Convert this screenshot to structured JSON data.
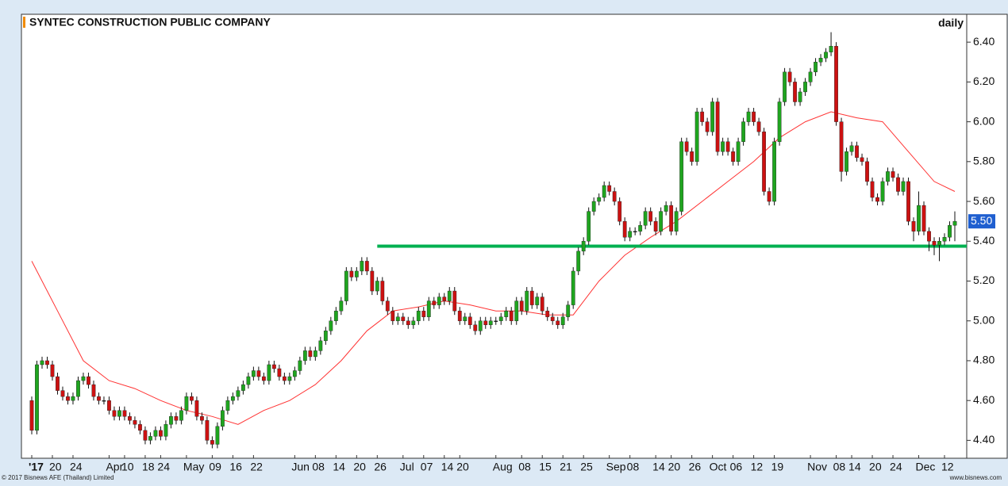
{
  "chart_data": {
    "type": "candlestick",
    "title": "SYNTEC CONSTRUCTION PUBLIC COMPANY",
    "period": "daily",
    "footer_left": "© 2017 Bisnews AFE (Thailand) Limited",
    "footer_right": "www.bisnews.com",
    "last_value_label": "5.50",
    "up_color": "#1fa51f",
    "down_color": "#cc1111",
    "ylim": [
      4.31,
      6.54
    ],
    "yticks": [
      {
        "value": 4.4,
        "label": "4.40"
      },
      {
        "value": 4.6,
        "label": "4.60"
      },
      {
        "value": 4.8,
        "label": "4.80"
      },
      {
        "value": 5.0,
        "label": "5.00"
      },
      {
        "value": 5.2,
        "label": "5.20"
      },
      {
        "value": 5.4,
        "label": "5.40"
      },
      {
        "value": 5.6,
        "label": "5.60"
      },
      {
        "value": 5.8,
        "label": "5.80"
      },
      {
        "value": 6.0,
        "label": "6.00"
      },
      {
        "value": 6.2,
        "label": "6.20"
      },
      {
        "value": 6.4,
        "label": "6.40"
      }
    ],
    "categories": [
      "'17",
      null,
      null,
      null,
      "20",
      null,
      null,
      null,
      "24",
      null,
      null,
      null,
      null,
      null,
      null,
      "Apr",
      null,
      null,
      "10",
      null,
      null,
      null,
      "18",
      null,
      null,
      "24",
      null,
      null,
      null,
      null,
      "May",
      null,
      null,
      null,
      null,
      "09",
      null,
      null,
      null,
      "16",
      null,
      null,
      null,
      "22",
      null,
      null,
      null,
      null,
      null,
      null,
      null,
      "Jun",
      null,
      null,
      null,
      "08",
      null,
      null,
      null,
      "14",
      null,
      null,
      null,
      "20",
      null,
      null,
      null,
      "26",
      null,
      null,
      null,
      null,
      "Jul",
      null,
      null,
      null,
      "07",
      null,
      null,
      null,
      "14",
      null,
      null,
      "20",
      null,
      null,
      null,
      null,
      null,
      null,
      "Aug",
      null,
      null,
      null,
      null,
      "08",
      null,
      null,
      null,
      "15",
      null,
      null,
      null,
      "21",
      null,
      null,
      null,
      "25",
      null,
      null,
      null,
      null,
      "Sep",
      null,
      null,
      null,
      "08",
      null,
      null,
      null,
      null,
      "14",
      null,
      null,
      "20",
      null,
      null,
      null,
      "26",
      null,
      null,
      null,
      "Oct",
      null,
      null,
      null,
      "06",
      null,
      null,
      null,
      "12",
      null,
      null,
      null,
      "19",
      null,
      null,
      null,
      null,
      null,
      null,
      "Nov",
      null,
      null,
      null,
      null,
      "08",
      null,
      null,
      "14",
      null,
      null,
      null,
      "20",
      null,
      null,
      null,
      "24",
      null,
      null,
      null,
      null,
      "Dec",
      null,
      null,
      null,
      null,
      "12",
      null,
      null
    ],
    "open": [
      4.6,
      4.45,
      4.78,
      4.8,
      4.78,
      4.72,
      4.65,
      4.62,
      4.6,
      4.62,
      4.7,
      4.72,
      4.68,
      4.62,
      4.6,
      4.6,
      4.55,
      4.52,
      4.55,
      4.52,
      4.5,
      4.48,
      4.45,
      4.4,
      4.42,
      4.45,
      4.42,
      4.48,
      4.52,
      4.5,
      4.55,
      4.62,
      4.6,
      4.52,
      4.5,
      4.4,
      4.38,
      4.47,
      4.55,
      4.6,
      4.62,
      4.65,
      4.68,
      4.72,
      4.75,
      4.72,
      4.7,
      4.78,
      4.76,
      4.72,
      4.7,
      4.72,
      4.75,
      4.8,
      4.85,
      4.82,
      4.85,
      4.9,
      4.95,
      5.0,
      5.05,
      5.1,
      5.25,
      5.22,
      5.25,
      5.3,
      5.25,
      5.15,
      5.2,
      5.1,
      5.05,
      5.0,
      5.02,
      5.0,
      4.98,
      5.0,
      5.05,
      5.02,
      5.1,
      5.08,
      5.12,
      5.1,
      5.15,
      5.05,
      5.0,
      5.02,
      4.98,
      4.95,
      5.0,
      4.98,
      5.0,
      5.0,
      5.02,
      5.05,
      5.0,
      5.1,
      5.05,
      5.15,
      5.08,
      5.12,
      5.05,
      5.02,
      5.0,
      4.98,
      5.02,
      5.08,
      5.25,
      5.35,
      5.4,
      5.55,
      5.6,
      5.62,
      5.68,
      5.65,
      5.6,
      5.5,
      5.42,
      5.45,
      5.45,
      5.48,
      5.55,
      5.5,
      5.45,
      5.55,
      5.58,
      5.45,
      5.55,
      5.9,
      5.85,
      5.8,
      6.05,
      6.0,
      5.95,
      6.1,
      5.85,
      5.9,
      5.85,
      5.8,
      5.9,
      6.0,
      6.05,
      6.0,
      5.95,
      5.65,
      5.6,
      5.9,
      6.1,
      6.25,
      6.2,
      6.1,
      6.15,
      6.2,
      6.25,
      6.3,
      6.32,
      6.35,
      6.38,
      6.0,
      5.75,
      5.85,
      5.88,
      5.82,
      5.8,
      5.7,
      5.62,
      5.6,
      5.7,
      5.75,
      5.72,
      5.65,
      5.7,
      5.5,
      5.45,
      5.58,
      5.45,
      5.4,
      5.38,
      5.4,
      5.42,
      5.48
    ],
    "high": [
      4.62,
      4.8,
      4.82,
      4.82,
      4.8,
      4.74,
      4.67,
      4.64,
      4.64,
      4.72,
      4.74,
      4.74,
      4.7,
      4.64,
      4.62,
      4.62,
      4.57,
      4.57,
      4.57,
      4.54,
      4.52,
      4.5,
      4.47,
      4.44,
      4.47,
      4.47,
      4.5,
      4.54,
      4.54,
      4.57,
      4.64,
      4.64,
      4.62,
      4.54,
      4.52,
      4.42,
      4.49,
      4.57,
      4.62,
      4.64,
      4.67,
      4.7,
      4.74,
      4.77,
      4.77,
      4.74,
      4.8,
      4.8,
      4.78,
      4.74,
      4.74,
      4.77,
      4.82,
      4.87,
      4.87,
      4.87,
      4.92,
      4.97,
      5.02,
      5.07,
      5.12,
      5.27,
      5.27,
      5.27,
      5.32,
      5.32,
      5.27,
      5.22,
      5.22,
      5.12,
      5.07,
      5.04,
      5.04,
      5.02,
      5.02,
      5.07,
      5.07,
      5.12,
      5.12,
      5.14,
      5.14,
      5.17,
      5.17,
      5.07,
      5.04,
      5.04,
      5.0,
      5.02,
      5.02,
      5.02,
      5.02,
      5.04,
      5.07,
      5.07,
      5.12,
      5.12,
      5.17,
      5.17,
      5.14,
      5.14,
      5.07,
      5.04,
      5.02,
      5.04,
      5.1,
      5.27,
      5.37,
      5.42,
      5.57,
      5.62,
      5.64,
      5.7,
      5.7,
      5.67,
      5.62,
      5.52,
      5.47,
      5.47,
      5.5,
      5.57,
      5.57,
      5.52,
      5.57,
      5.6,
      5.6,
      5.57,
      5.92,
      5.92,
      5.87,
      6.07,
      6.07,
      6.02,
      6.12,
      6.12,
      5.92,
      5.92,
      5.87,
      5.92,
      6.02,
      6.07,
      6.07,
      6.02,
      5.97,
      5.67,
      5.92,
      6.12,
      6.27,
      6.27,
      6.22,
      6.17,
      6.22,
      6.27,
      6.32,
      6.34,
      6.37,
      6.45,
      6.4,
      6.02,
      5.87,
      5.9,
      5.9,
      5.84,
      5.82,
      5.72,
      5.64,
      5.72,
      5.77,
      5.77,
      5.74,
      5.72,
      5.72,
      5.52,
      5.65,
      5.6,
      5.47,
      5.42,
      5.42,
      5.44,
      5.5,
      5.55
    ],
    "low": [
      4.43,
      4.43,
      4.76,
      4.76,
      4.7,
      4.63,
      4.6,
      4.58,
      4.58,
      4.6,
      4.68,
      4.66,
      4.6,
      4.58,
      4.58,
      4.53,
      4.5,
      4.5,
      4.5,
      4.48,
      4.46,
      4.43,
      4.38,
      4.38,
      4.4,
      4.4,
      4.4,
      4.46,
      4.48,
      4.48,
      4.53,
      4.58,
      4.5,
      4.48,
      4.38,
      4.36,
      4.36,
      4.45,
      4.53,
      4.58,
      4.6,
      4.63,
      4.66,
      4.7,
      4.7,
      4.68,
      4.68,
      4.74,
      4.7,
      4.68,
      4.68,
      4.7,
      4.73,
      4.78,
      4.8,
      4.8,
      4.83,
      4.88,
      4.93,
      4.98,
      5.03,
      5.08,
      5.2,
      5.2,
      5.23,
      5.23,
      5.13,
      5.13,
      5.08,
      5.03,
      4.98,
      4.98,
      4.98,
      4.96,
      4.96,
      4.98,
      5.0,
      5.0,
      5.06,
      5.06,
      5.08,
      5.08,
      5.03,
      4.98,
      4.98,
      4.96,
      4.93,
      4.93,
      4.96,
      4.96,
      4.98,
      4.98,
      5.0,
      4.98,
      4.98,
      5.03,
      5.03,
      5.06,
      5.06,
      5.03,
      5.0,
      4.98,
      4.96,
      4.96,
      5.0,
      5.06,
      5.23,
      5.33,
      5.38,
      5.53,
      5.58,
      5.6,
      5.63,
      5.58,
      5.48,
      5.4,
      5.4,
      5.43,
      5.43,
      5.46,
      5.48,
      5.43,
      5.43,
      5.53,
      5.43,
      5.43,
      5.53,
      5.83,
      5.78,
      5.78,
      5.98,
      5.93,
      5.93,
      5.83,
      5.83,
      5.83,
      5.78,
      5.78,
      5.88,
      5.98,
      5.98,
      5.93,
      5.63,
      5.58,
      5.58,
      5.88,
      6.08,
      6.18,
      6.08,
      6.08,
      6.13,
      6.18,
      6.23,
      6.28,
      6.3,
      6.33,
      5.98,
      5.7,
      5.73,
      5.83,
      5.8,
      5.78,
      5.68,
      5.6,
      5.58,
      5.58,
      5.68,
      5.7,
      5.63,
      5.63,
      5.48,
      5.4,
      5.43,
      5.43,
      5.35,
      5.33,
      5.3,
      5.38,
      5.4,
      5.4
    ],
    "close": [
      4.45,
      4.78,
      4.8,
      4.78,
      4.72,
      4.65,
      4.62,
      4.6,
      4.62,
      4.7,
      4.72,
      4.68,
      4.62,
      4.6,
      4.6,
      4.55,
      4.52,
      4.55,
      4.52,
      4.5,
      4.48,
      4.45,
      4.4,
      4.42,
      4.45,
      4.42,
      4.48,
      4.52,
      4.5,
      4.55,
      4.62,
      4.6,
      4.52,
      4.5,
      4.4,
      4.38,
      4.47,
      4.55,
      4.6,
      4.62,
      4.65,
      4.68,
      4.72,
      4.75,
      4.72,
      4.7,
      4.78,
      4.76,
      4.72,
      4.7,
      4.72,
      4.75,
      4.8,
      4.85,
      4.82,
      4.85,
      4.9,
      4.95,
      5.0,
      5.05,
      5.1,
      5.25,
      5.22,
      5.25,
      5.3,
      5.25,
      5.15,
      5.2,
      5.1,
      5.05,
      5.0,
      5.02,
      5.0,
      4.98,
      5.0,
      5.05,
      5.02,
      5.1,
      5.08,
      5.12,
      5.1,
      5.15,
      5.05,
      5.0,
      5.02,
      4.98,
      4.95,
      5.0,
      4.98,
      5.0,
      5.0,
      5.02,
      5.05,
      5.0,
      5.1,
      5.05,
      5.15,
      5.08,
      5.12,
      5.05,
      5.02,
      5.0,
      4.98,
      5.02,
      5.08,
      5.25,
      5.35,
      5.4,
      5.55,
      5.6,
      5.62,
      5.68,
      5.65,
      5.6,
      5.5,
      5.42,
      5.45,
      5.45,
      5.48,
      5.55,
      5.5,
      5.45,
      5.55,
      5.58,
      5.45,
      5.55,
      5.9,
      5.85,
      5.8,
      6.05,
      6.0,
      5.95,
      6.1,
      5.85,
      5.9,
      5.85,
      5.8,
      5.9,
      6.0,
      6.05,
      6.0,
      5.95,
      5.65,
      5.6,
      5.9,
      6.1,
      6.25,
      6.2,
      6.1,
      6.15,
      6.2,
      6.25,
      6.3,
      6.32,
      6.35,
      6.38,
      6.0,
      5.75,
      5.85,
      5.88,
      5.82,
      5.8,
      5.7,
      5.62,
      5.6,
      5.7,
      5.75,
      5.72,
      5.65,
      5.7,
      5.5,
      5.45,
      5.58,
      5.45,
      5.4,
      5.38,
      5.4,
      5.42,
      5.48,
      5.5
    ],
    "ma": {
      "color": "#ff3333",
      "x": [
        0,
        5,
        10,
        15,
        20,
        25,
        30,
        35,
        40,
        45,
        50,
        55,
        60,
        65,
        70,
        75,
        80,
        85,
        90,
        95,
        100,
        105,
        110,
        115,
        120,
        125,
        130,
        135,
        140,
        145,
        150,
        155,
        160,
        165,
        170,
        175,
        179
      ],
      "values": [
        5.3,
        5.05,
        4.8,
        4.7,
        4.66,
        4.6,
        4.55,
        4.52,
        4.48,
        4.55,
        4.6,
        4.68,
        4.8,
        4.95,
        5.05,
        5.07,
        5.1,
        5.08,
        5.05,
        5.05,
        5.03,
        5.03,
        5.2,
        5.33,
        5.42,
        5.5,
        5.6,
        5.7,
        5.8,
        5.92,
        6.0,
        6.05,
        6.02,
        6.0,
        5.85,
        5.7,
        5.65
      ]
    },
    "support_line": {
      "value": 5.375,
      "start": 67,
      "color": "#00b050"
    }
  }
}
